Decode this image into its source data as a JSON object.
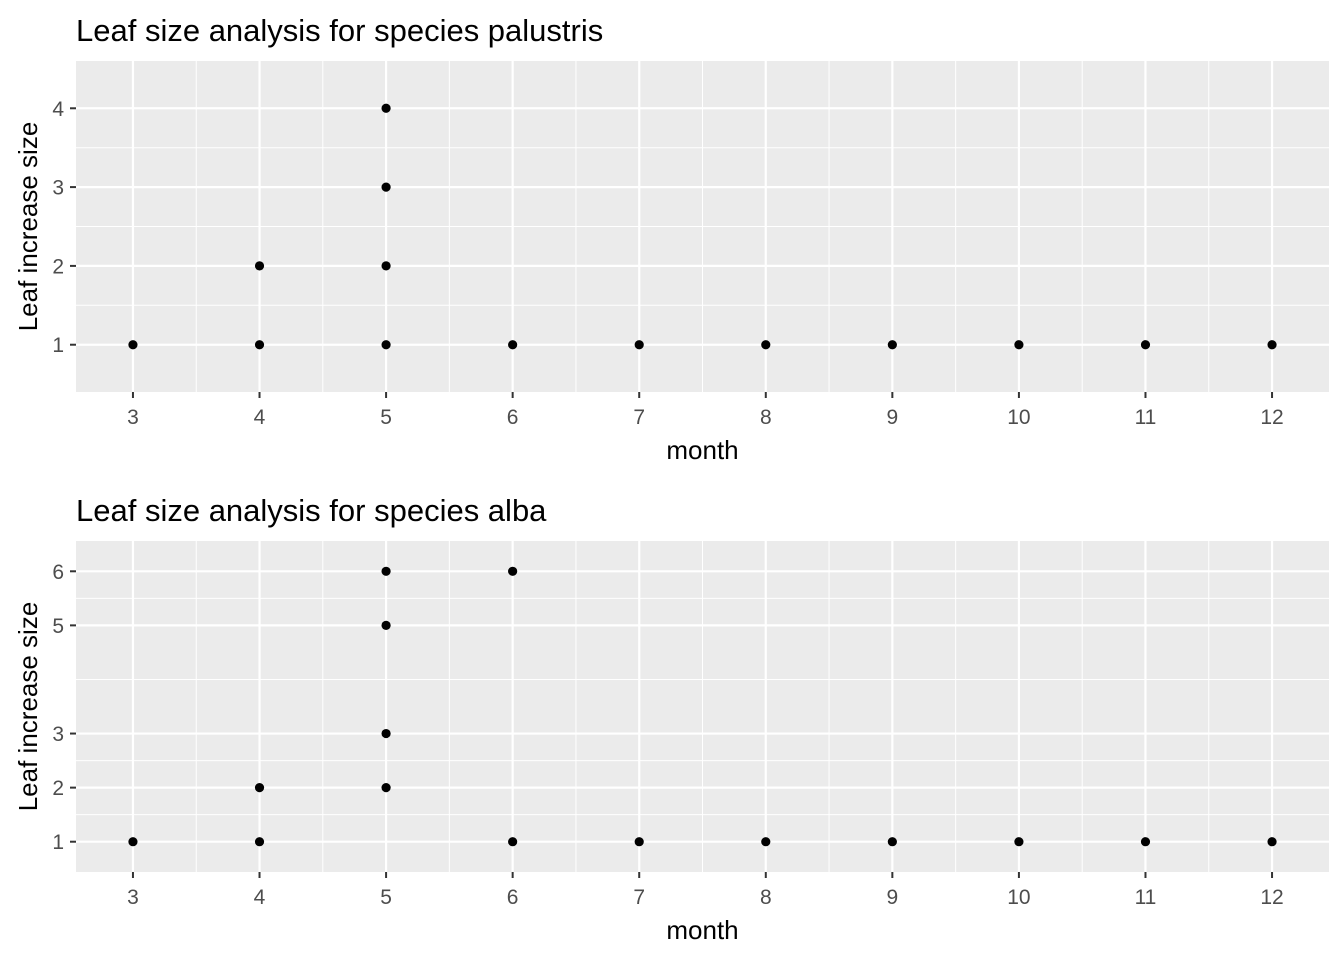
{
  "chart_data": [
    {
      "type": "scatter",
      "title": "Leaf size analysis for species palustris",
      "xlabel": "month",
      "ylabel": "Leaf increase size",
      "xlim": [
        2.55,
        12.45
      ],
      "ylim": [
        0.4,
        4.6
      ],
      "xticks": [
        3,
        4,
        5,
        6,
        7,
        8,
        9,
        10,
        11,
        12
      ],
      "yticks": [
        1,
        2,
        3,
        4
      ],
      "grid": true,
      "points": [
        {
          "x": 3,
          "y": 1
        },
        {
          "x": 4,
          "y": 1
        },
        {
          "x": 4,
          "y": 2
        },
        {
          "x": 5,
          "y": 1
        },
        {
          "x": 5,
          "y": 2
        },
        {
          "x": 5,
          "y": 3
        },
        {
          "x": 5,
          "y": 4
        },
        {
          "x": 6,
          "y": 1
        },
        {
          "x": 7,
          "y": 1
        },
        {
          "x": 8,
          "y": 1
        },
        {
          "x": 9,
          "y": 1
        },
        {
          "x": 10,
          "y": 1
        },
        {
          "x": 11,
          "y": 1
        },
        {
          "x": 12,
          "y": 1
        }
      ]
    },
    {
      "type": "scatter",
      "title": "Leaf size analysis for species alba",
      "xlabel": "month",
      "ylabel": "Leaf increase size",
      "xlim": [
        2.55,
        12.45
      ],
      "ylim": [
        0.44,
        6.56
      ],
      "xticks": [
        3,
        4,
        5,
        6,
        7,
        8,
        9,
        10,
        11,
        12
      ],
      "yticks": [
        1,
        2,
        3,
        5,
        6
      ],
      "grid": true,
      "points": [
        {
          "x": 3,
          "y": 1
        },
        {
          "x": 4,
          "y": 1
        },
        {
          "x": 4,
          "y": 2
        },
        {
          "x": 5,
          "y": 2
        },
        {
          "x": 5,
          "y": 3
        },
        {
          "x": 5,
          "y": 5
        },
        {
          "x": 5,
          "y": 6
        },
        {
          "x": 6,
          "y": 1
        },
        {
          "x": 6,
          "y": 6
        },
        {
          "x": 7,
          "y": 1
        },
        {
          "x": 8,
          "y": 1
        },
        {
          "x": 9,
          "y": 1
        },
        {
          "x": 10,
          "y": 1
        },
        {
          "x": 11,
          "y": 1
        },
        {
          "x": 12,
          "y": 1
        }
      ]
    }
  ]
}
